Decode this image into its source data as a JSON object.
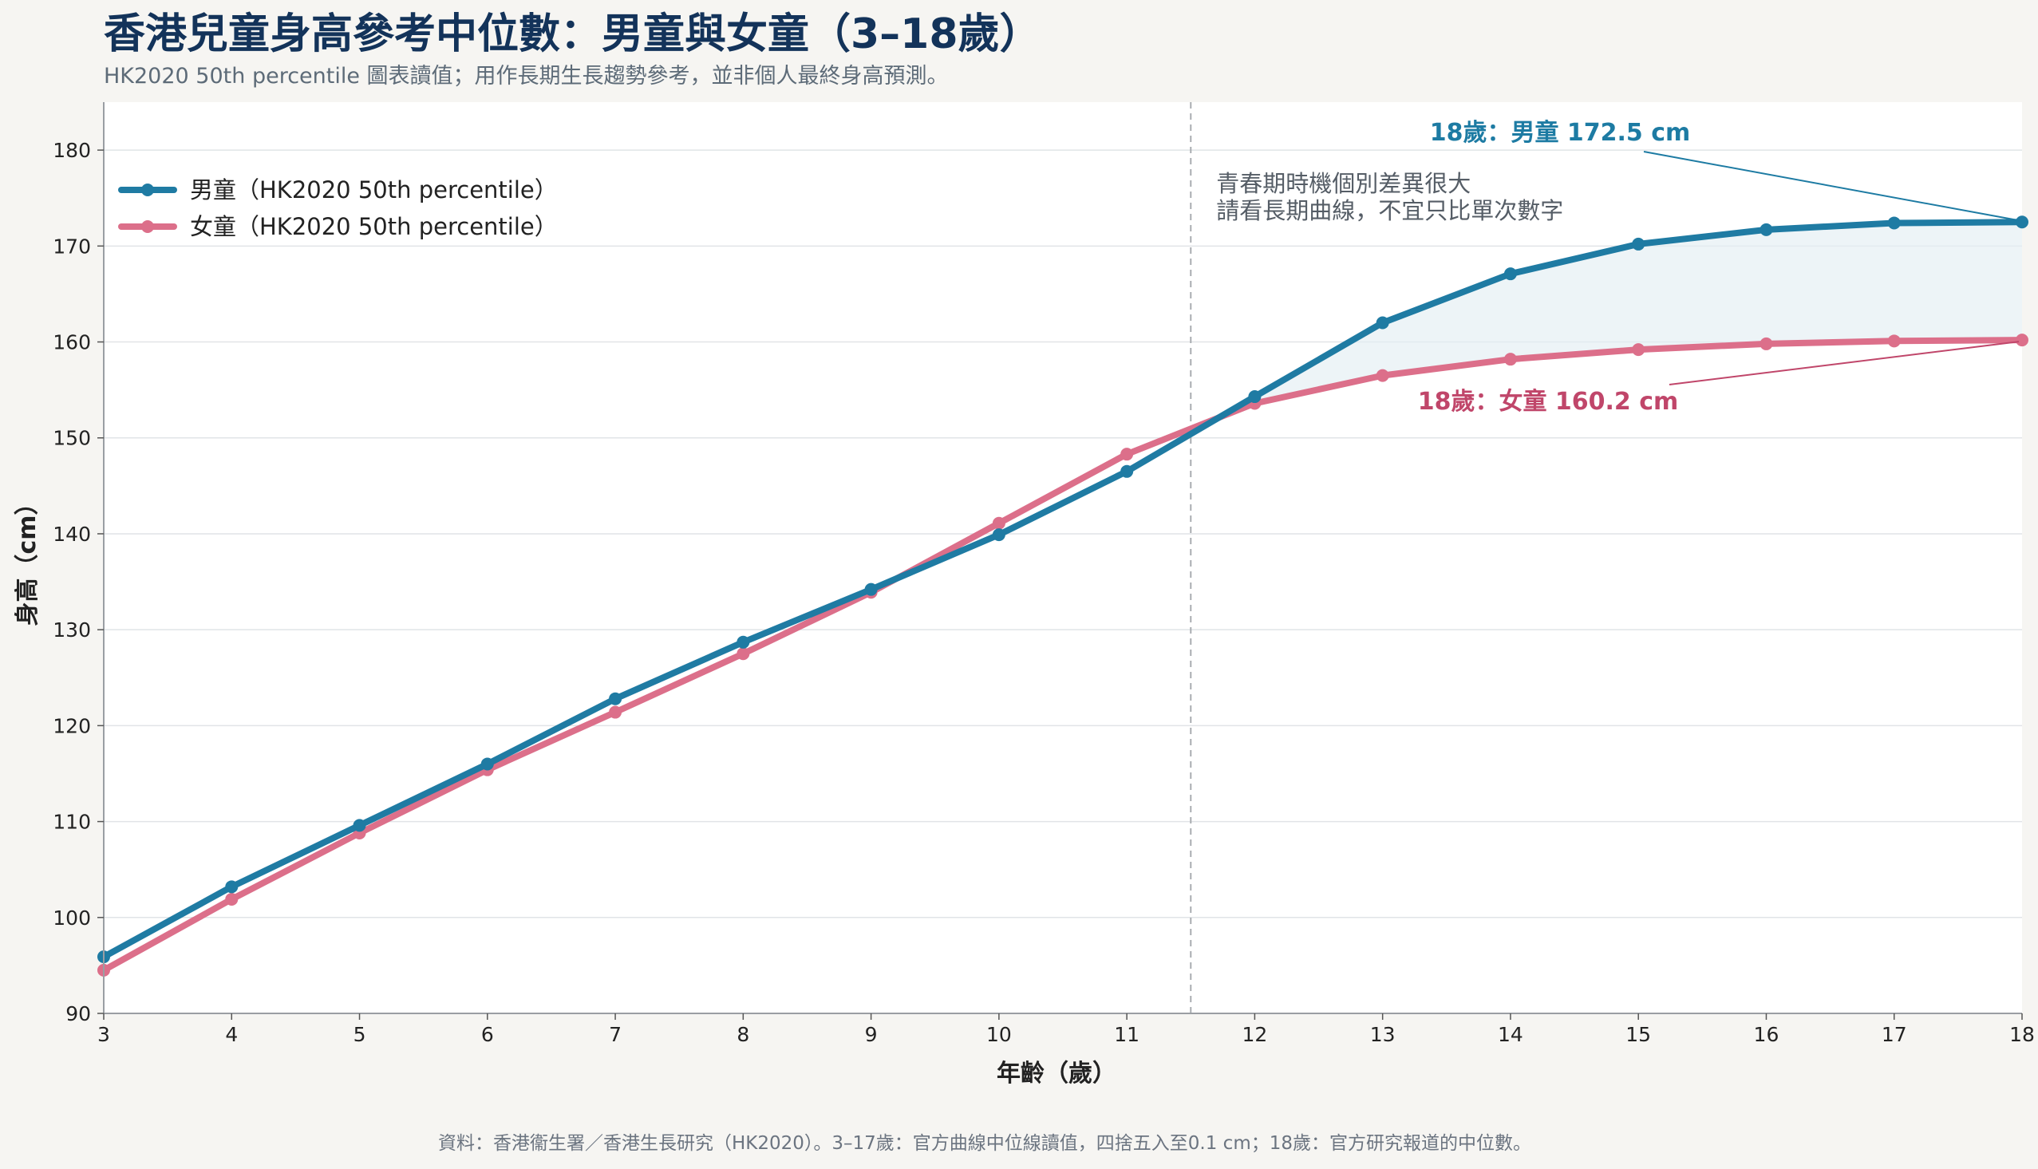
{
  "title": "香港兒童身高參考中位數：男童與女童（3–18歲）",
  "subtitle": "HK2020 50th percentile 圖表讀值；用作長期生長趨勢參考，並非個人最終身高預測。",
  "source": "資料：香港衞生署／香港生長研究（HK2020）。3–17歲：官方曲線中位線讀值，四捨五入至0.1 cm；18歲：官方研究報道的中位數。",
  "colors": {
    "boys": "#1f7ba3",
    "girls": "#dc6f8a",
    "boys_label": "#1d7ba3",
    "girls_label": "#c0466a",
    "title": "#13335a",
    "fill_between": "#e4eef3"
  },
  "chart_data": {
    "type": "line",
    "xlabel": "年齡（歲）",
    "ylabel": "身高（cm）",
    "xlim": [
      3,
      18
    ],
    "ylim": [
      90,
      185
    ],
    "x": [
      3,
      4,
      5,
      6,
      7,
      8,
      9,
      10,
      11,
      12,
      13,
      14,
      15,
      16,
      17,
      18
    ],
    "x_ticks": [
      3,
      4,
      5,
      6,
      7,
      8,
      9,
      10,
      11,
      12,
      13,
      14,
      15,
      16,
      17,
      18
    ],
    "y_ticks": [
      90,
      100,
      110,
      120,
      130,
      140,
      150,
      160,
      170,
      180
    ],
    "grid": "horizontal",
    "legend_position": "top-left",
    "series": [
      {
        "name": "男童（HK2020 50th percentile）",
        "values": [
          95.9,
          103.2,
          109.6,
          116.0,
          122.8,
          128.7,
          134.2,
          139.9,
          146.5,
          154.3,
          162.0,
          167.1,
          170.2,
          171.7,
          172.4,
          172.5
        ]
      },
      {
        "name": "女童（HK2020 50th percentile）",
        "values": [
          94.5,
          101.9,
          108.8,
          115.4,
          121.4,
          127.5,
          133.9,
          141.1,
          148.3,
          153.6,
          156.5,
          158.2,
          159.2,
          159.8,
          160.1,
          160.2
        ]
      }
    ],
    "reference_line_x": 11.5,
    "note_lines": [
      "青春期時機個別差異很大",
      "請看長期曲線，不宜只比單次數字"
    ],
    "annotations": {
      "boys_end": "18歲：男童 172.5 cm",
      "girls_end": "18歲：女童 160.2 cm"
    }
  }
}
